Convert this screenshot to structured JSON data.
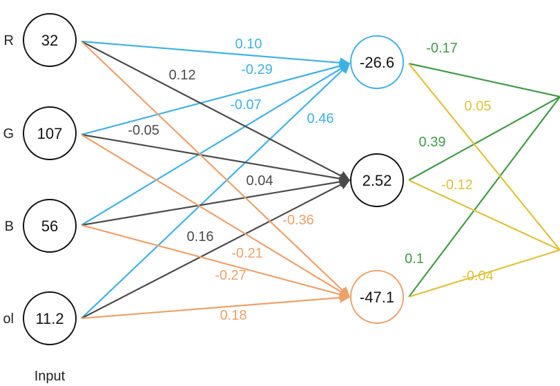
{
  "colors": {
    "blue": "#3fb0e6",
    "dark": "#4a4a4a",
    "orange": "#eea06a",
    "green": "#3f9a46",
    "yellow": "#e0c13a"
  },
  "input_nodes": [
    {
      "label": "R",
      "value": "32"
    },
    {
      "label": "G",
      "value": "107"
    },
    {
      "label": "B",
      "value": "56"
    },
    {
      "label": "ol",
      "value": "11.2"
    }
  ],
  "hidden_nodes": [
    {
      "value": "-26.6",
      "color": "blue"
    },
    {
      "value": "2.52",
      "color": "dark"
    },
    {
      "value": "-47.1",
      "color": "orange"
    }
  ],
  "input_caption": "Input",
  "input_edges": [
    {
      "from": 0,
      "to": 0,
      "weight": "0.10"
    },
    {
      "from": 1,
      "to": 0,
      "weight": "-0.29"
    },
    {
      "from": 2,
      "to": 0,
      "weight": "-0.07"
    },
    {
      "from": 3,
      "to": 0,
      "weight": "0.46"
    },
    {
      "from": 0,
      "to": 1,
      "weight": "0.12"
    },
    {
      "from": 1,
      "to": 1,
      "weight": "-0.05"
    },
    {
      "from": 2,
      "to": 1,
      "weight": "0.04"
    },
    {
      "from": 3,
      "to": 1,
      "weight": "0.16"
    },
    {
      "from": 0,
      "to": 2,
      "weight": "-0.36"
    },
    {
      "from": 1,
      "to": 2,
      "weight": "-0.21"
    },
    {
      "from": 2,
      "to": 2,
      "weight": "-0.27"
    },
    {
      "from": 3,
      "to": 2,
      "weight": "0.18"
    }
  ],
  "output_edges": [
    {
      "from": 0,
      "to": 0,
      "weight": "-0.17"
    },
    {
      "from": 1,
      "to": 0,
      "weight": "0.39"
    },
    {
      "from": 2,
      "to": 0,
      "weight": "0.1"
    },
    {
      "from": 0,
      "to": 1,
      "weight": "0.05"
    },
    {
      "from": 1,
      "to": 1,
      "weight": "-0.12"
    },
    {
      "from": 2,
      "to": 1,
      "weight": "-0.04"
    }
  ]
}
